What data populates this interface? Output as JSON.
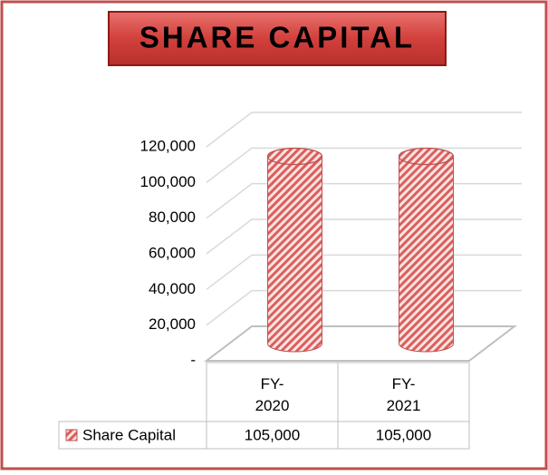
{
  "chart_data": {
    "type": "bar3d-cylinder",
    "title": "SHARE CAPITAL",
    "categories": [
      "FY-2020",
      "FY-2021"
    ],
    "series": [
      {
        "name": "Share Capital",
        "color": "#e07a78",
        "values": [
          105000,
          105000
        ],
        "value_labels": [
          "105,000",
          "105,000"
        ]
      }
    ],
    "ylim": [
      0,
      120000
    ],
    "yticks": [
      {
        "value": 0,
        "label": "-"
      },
      {
        "value": 20000,
        "label": "20,000"
      },
      {
        "value": 40000,
        "label": "40,000"
      },
      {
        "value": 60000,
        "label": "60,000"
      },
      {
        "value": 80000,
        "label": "80,000"
      },
      {
        "value": 100000,
        "label": "100,000"
      },
      {
        "value": 120000,
        "label": "120,000"
      }
    ],
    "grid": true,
    "legend": "table"
  }
}
